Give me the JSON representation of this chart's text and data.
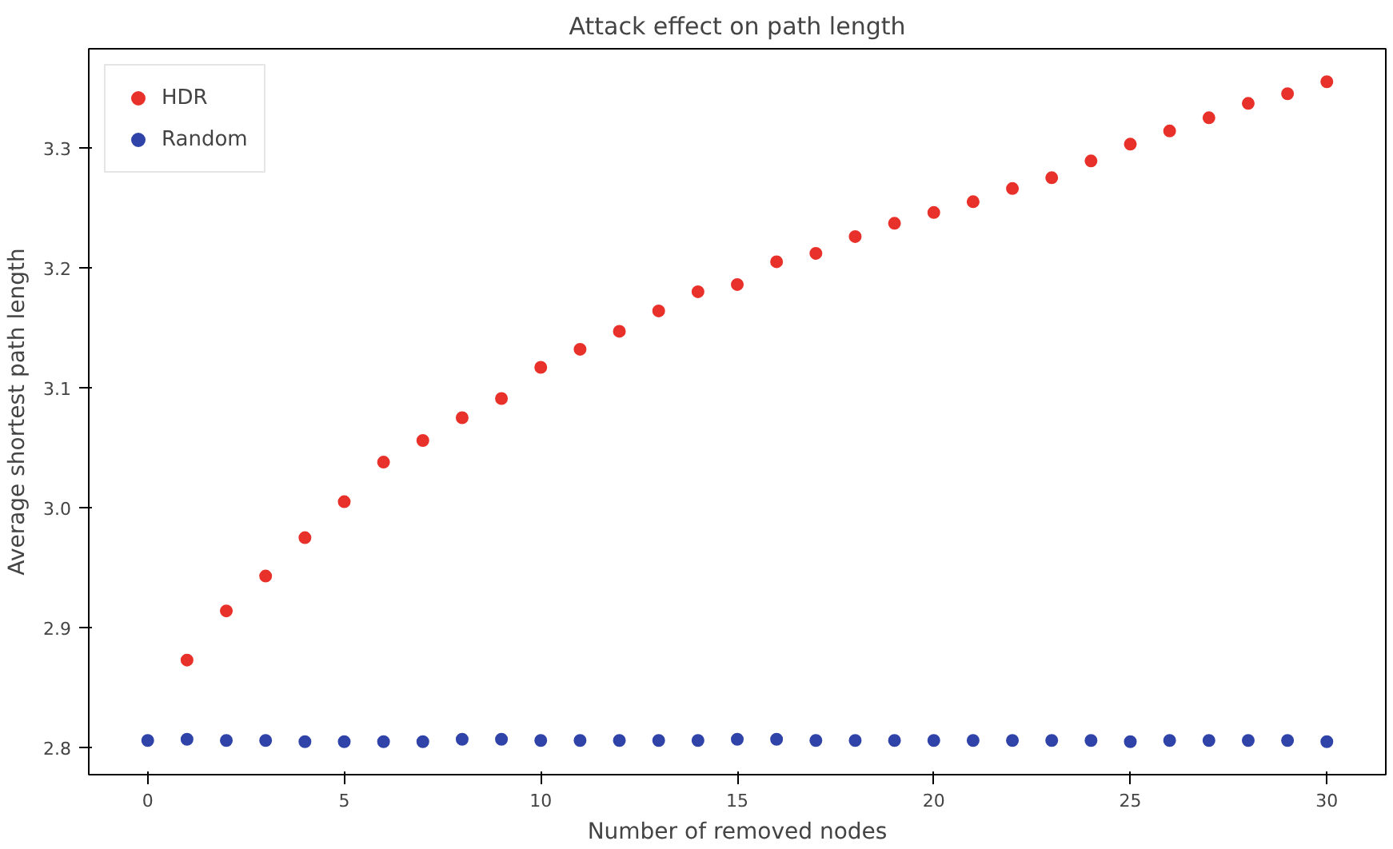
{
  "chart_data": {
    "type": "scatter",
    "title": "Attack effect on path length",
    "xlabel": "Number of removed nodes",
    "ylabel": "Average shortest path length",
    "xlim": [
      -1.5,
      31.5
    ],
    "ylim": [
      2.7775,
      3.3825
    ],
    "xticks": [
      0,
      5,
      10,
      15,
      20,
      25,
      30
    ],
    "yticks": [
      2.8,
      2.9,
      {
        "value": 3,
        "label": "3.0"
      },
      3.1,
      3.2,
      3.3
    ],
    "grid": false,
    "legend": "top left",
    "marker": "circle",
    "series": [
      {
        "name": "HDR",
        "color": "#e8312a",
        "x": [
          1,
          2,
          3,
          4,
          5,
          6,
          7,
          8,
          9,
          10,
          11,
          12,
          13,
          14,
          15,
          16,
          17,
          18,
          19,
          20,
          21,
          22,
          23,
          24,
          25,
          26,
          27,
          28,
          29,
          30
        ],
        "values": [
          2.873,
          2.914,
          2.943,
          2.975,
          3.005,
          3.038,
          3.056,
          3.075,
          3.091,
          3.117,
          3.132,
          3.147,
          3.164,
          3.18,
          3.186,
          3.205,
          3.212,
          3.226,
          3.237,
          3.246,
          3.255,
          3.266,
          3.275,
          3.289,
          3.303,
          3.314,
          3.325,
          3.337,
          3.345,
          3.355
        ]
      },
      {
        "name": "Random",
        "color": "#2f43a8",
        "x": [
          0,
          1,
          2,
          3,
          4,
          5,
          6,
          7,
          8,
          9,
          10,
          11,
          12,
          13,
          14,
          15,
          16,
          17,
          18,
          19,
          20,
          21,
          22,
          23,
          24,
          25,
          26,
          27,
          28,
          29,
          30
        ],
        "values": [
          2.806,
          2.807,
          2.806,
          2.806,
          2.805,
          2.805,
          2.805,
          2.805,
          2.807,
          2.807,
          2.806,
          2.806,
          2.806,
          2.806,
          2.806,
          2.807,
          2.807,
          2.806,
          2.806,
          2.806,
          2.806,
          2.806,
          2.806,
          2.806,
          2.806,
          2.805,
          2.806,
          2.806,
          2.806,
          2.806,
          2.805
        ]
      }
    ]
  }
}
